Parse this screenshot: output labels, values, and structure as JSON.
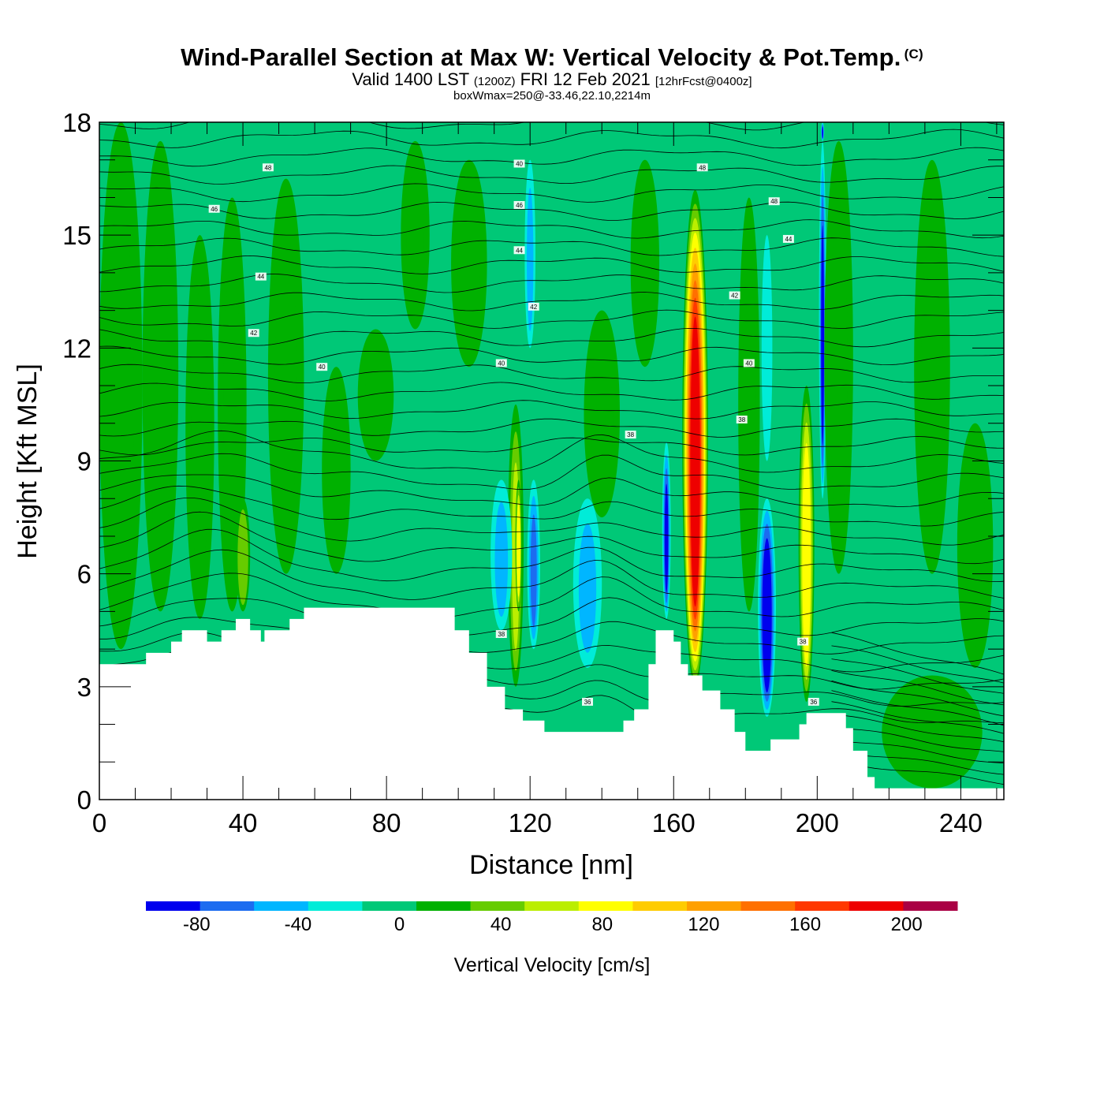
{
  "header": {
    "title": "Wind-Parallel Section at Max W: Vertical Velocity & Pot.Temp.",
    "copyright": "(C)",
    "valid_pre": "Valid 1400 LST",
    "valid_utc": "(1200Z)",
    "valid_post": "FRI 12 Feb 2021",
    "forecast": "[12hrFcst@0400z]",
    "box_info": "boxWmax=250@-33.46,22.10,2214m"
  },
  "chart_data": {
    "type": "heatmap",
    "title": "Wind-Parallel Section at Max W: Vertical Velocity & Pot.Temp.",
    "xlabel": "Distance [nm]",
    "ylabel": "Height [Kft MSL]",
    "xlim": [
      0,
      252
    ],
    "ylim": [
      0,
      18
    ],
    "x_ticks": [
      0,
      40,
      80,
      120,
      160,
      200,
      240
    ],
    "y_ticks": [
      0,
      3,
      6,
      9,
      12,
      15,
      18
    ],
    "colorbar": {
      "title": "Vertical Velocity [cm/s]",
      "bounds": [
        -100,
        200,
        20
      ],
      "levels": [
        -100,
        -80,
        -60,
        -40,
        -20,
        0,
        20,
        40,
        60,
        80,
        100,
        120,
        140,
        160,
        180,
        200,
        220
      ],
      "tick_labels": [
        "-80",
        "-40",
        "0",
        "40",
        "80",
        "120",
        "160",
        "200"
      ],
      "tick_values": [
        -80,
        -40,
        0,
        40,
        80,
        120,
        160,
        200
      ],
      "colors": [
        "#0000ee",
        "#1c6cf0",
        "#00b6ff",
        "#00ecd8",
        "#00c877",
        "#00b100",
        "#66cc00",
        "#bbee00",
        "#ffff00",
        "#ffcc00",
        "#ffa000",
        "#ff7000",
        "#ff3800",
        "#ee0000",
        "#aa0044"
      ]
    },
    "terrain": [
      [
        0,
        3.6
      ],
      [
        12,
        3.6
      ],
      [
        13,
        3.9
      ],
      [
        19,
        3.9
      ],
      [
        20,
        4.2
      ],
      [
        22,
        4.2
      ],
      [
        23,
        4.5
      ],
      [
        29,
        4.5
      ],
      [
        30,
        4.2
      ],
      [
        33,
        4.2
      ],
      [
        34,
        4.5
      ],
      [
        37,
        4.5
      ],
      [
        38,
        4.8
      ],
      [
        41,
        4.8
      ],
      [
        42,
        4.5
      ],
      [
        44,
        4.5
      ],
      [
        45,
        4.2
      ],
      [
        46,
        4.5
      ],
      [
        52,
        4.5
      ],
      [
        53,
        4.8
      ],
      [
        56,
        4.8
      ],
      [
        57,
        5.1
      ],
      [
        97,
        5.1
      ],
      [
        99,
        4.5
      ],
      [
        103,
        3.9
      ],
      [
        108,
        3.0
      ],
      [
        113,
        2.4
      ],
      [
        118,
        2.1
      ],
      [
        124,
        1.8
      ],
      [
        143,
        1.8
      ],
      [
        146,
        2.1
      ],
      [
        149,
        2.4
      ],
      [
        153,
        3.6
      ],
      [
        155,
        4.5
      ],
      [
        159,
        4.5
      ],
      [
        160,
        4.2
      ],
      [
        162,
        3.6
      ],
      [
        164,
        3.3
      ],
      [
        168,
        2.9
      ],
      [
        173,
        2.4
      ],
      [
        177,
        1.8
      ],
      [
        180,
        1.3
      ],
      [
        186,
        1.3
      ],
      [
        187,
        1.6
      ],
      [
        192,
        1.6
      ],
      [
        195,
        2.0
      ],
      [
        197,
        2.3
      ],
      [
        205,
        2.3
      ],
      [
        208,
        1.9
      ],
      [
        210,
        1.3
      ],
      [
        214,
        0.6
      ],
      [
        216,
        0.3
      ],
      [
        218,
        0.3
      ],
      [
        221,
        0.3
      ],
      [
        252,
        0.3
      ]
    ],
    "bands": [
      {
        "x": 6,
        "y0": 4,
        "y1": 18,
        "w": 6,
        "v": 24
      },
      {
        "x": 17,
        "y0": 5,
        "y1": 17.5,
        "w": 5,
        "v": 22
      },
      {
        "x": 28,
        "y0": 4.8,
        "y1": 15,
        "w": 4,
        "v": 24
      },
      {
        "x": 37,
        "y0": 5,
        "y1": 16,
        "w": 4,
        "v": 26
      },
      {
        "x": 40,
        "y0": 5,
        "y1": 8,
        "w": 2,
        "v": 42
      },
      {
        "x": 52,
        "y0": 6,
        "y1": 16.5,
        "w": 5,
        "v": 24
      },
      {
        "x": 66,
        "y0": 6,
        "y1": 11.5,
        "w": 4,
        "v": 24
      },
      {
        "x": 77,
        "y0": 9,
        "y1": 12.5,
        "w": 5,
        "v": 22
      },
      {
        "x": 88,
        "y0": 12.5,
        "y1": 17.5,
        "w": 4,
        "v": 22
      },
      {
        "x": 103,
        "y0": 11.5,
        "y1": 17,
        "w": 5,
        "v": 24
      },
      {
        "x": 116,
        "y0": 3,
        "y1": 10.5,
        "w": 2.2,
        "v": 60
      },
      {
        "x": 116.8,
        "y0": 5,
        "y1": 8.5,
        "w": 0.9,
        "v": 86
      },
      {
        "x": 121,
        "y0": 4,
        "y1": 8.5,
        "w": 1.8,
        "v": -58
      },
      {
        "x": 120,
        "y0": 12,
        "y1": 17,
        "w": 1.5,
        "v": -22
      },
      {
        "x": 112,
        "y0": 4.5,
        "y1": 8.5,
        "w": 3,
        "v": -22
      },
      {
        "x": 136,
        "y0": 3.5,
        "y1": 8,
        "w": 4,
        "v": -22
      },
      {
        "x": 140,
        "y0": 7.5,
        "y1": 13,
        "w": 5,
        "v": 24
      },
      {
        "x": 152,
        "y0": 11.5,
        "y1": 17,
        "w": 4,
        "v": 26
      },
      {
        "x": 158,
        "y0": 4.8,
        "y1": 9.5,
        "w": 1.2,
        "v": -62
      },
      {
        "x": 166,
        "y0": 3,
        "y1": 16.2,
        "w": 3.6,
        "v": 190
      },
      {
        "x": 181,
        "y0": 5,
        "y1": 16,
        "w": 3,
        "v": 24
      },
      {
        "x": 186,
        "y0": 2.2,
        "y1": 8,
        "w": 2.5,
        "v": -96
      },
      {
        "x": 186,
        "y0": 9,
        "y1": 15,
        "w": 1.5,
        "v": -20
      },
      {
        "x": 197,
        "y0": 2.6,
        "y1": 11,
        "w": 2.2,
        "v": 90
      },
      {
        "x": 201.5,
        "y0": 8,
        "y1": 17.5,
        "w": 1.0,
        "v": -62
      },
      {
        "x": 201.5,
        "y0": 17.5,
        "y1": 18,
        "w": 0.4,
        "v": -70
      },
      {
        "x": 206,
        "y0": 6,
        "y1": 17.5,
        "w": 4,
        "v": 24
      },
      {
        "x": 232,
        "y0": 6,
        "y1": 17,
        "w": 5,
        "v": 22
      },
      {
        "x": 244,
        "y0": 3.5,
        "y1": 10,
        "w": 5,
        "v": 24
      },
      {
        "x": 232,
        "y0": 0.3,
        "y1": 3.3,
        "w": 14,
        "v": 24
      }
    ],
    "isentropes": [
      {
        "label": "36",
        "base": 5.0,
        "amp": 0.8
      },
      {
        "label": "38",
        "base": 7.8,
        "amp": 1.3
      },
      {
        "label": "40",
        "base": 10.6,
        "amp": 0.6
      },
      {
        "label": "42",
        "base": 12.3,
        "amp": 0.5
      },
      {
        "label": "44",
        "base": 14.0,
        "amp": 0.5
      },
      {
        "label": "46",
        "base": 15.8,
        "amp": 0.4
      },
      {
        "label": "48",
        "base": 17.1,
        "amp": 0.4
      }
    ],
    "isentrope_labels": [
      {
        "text": "48",
        "x": 47,
        "y": 16.8
      },
      {
        "text": "46",
        "x": 32,
        "y": 15.7
      },
      {
        "text": "44",
        "x": 45,
        "y": 13.9
      },
      {
        "text": "42",
        "x": 43,
        "y": 12.4
      },
      {
        "text": "40",
        "x": 62,
        "y": 11.5
      },
      {
        "text": "40",
        "x": 117,
        "y": 16.9
      },
      {
        "text": "46",
        "x": 117,
        "y": 15.8
      },
      {
        "text": "44",
        "x": 117,
        "y": 14.6
      },
      {
        "text": "42",
        "x": 121,
        "y": 13.1
      },
      {
        "text": "40",
        "x": 112,
        "y": 11.6
      },
      {
        "text": "38",
        "x": 148,
        "y": 9.7
      },
      {
        "text": "48",
        "x": 168,
        "y": 16.8
      },
      {
        "text": "48",
        "x": 188,
        "y": 15.9
      },
      {
        "text": "44",
        "x": 192,
        "y": 14.9
      },
      {
        "text": "42",
        "x": 177,
        "y": 13.4
      },
      {
        "text": "40",
        "x": 181,
        "y": 11.6
      },
      {
        "text": "38",
        "x": 179,
        "y": 10.1
      },
      {
        "text": "38",
        "x": 112,
        "y": 4.4
      },
      {
        "text": "36",
        "x": 136,
        "y": 2.6
      },
      {
        "text": "38",
        "x": 196,
        "y": 4.2
      },
      {
        "text": "36",
        "x": 199,
        "y": 2.6
      }
    ]
  }
}
